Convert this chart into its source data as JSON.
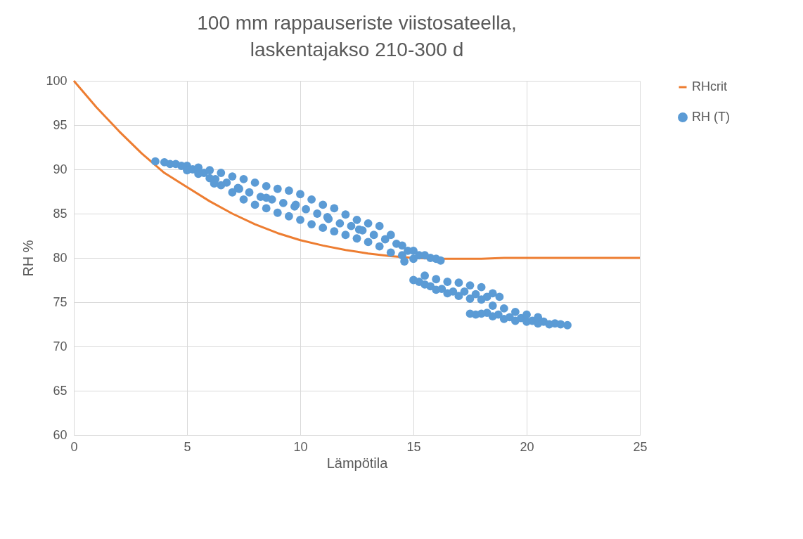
{
  "chart_data": {
    "type": "scatter",
    "title": "100 mm rappauseriste viistosateella,\nlaskentajakso 210-300 d",
    "xlabel": "Lämpötila",
    "ylabel": "RH %",
    "xlim": [
      0,
      25
    ],
    "xticks": [
      0,
      5,
      10,
      15,
      20,
      25
    ],
    "ylim": [
      60,
      100
    ],
    "yticks": [
      60,
      65,
      70,
      75,
      80,
      85,
      90,
      95,
      100
    ],
    "grid": true,
    "legend": "right",
    "series": [
      {
        "name": "RHcrit",
        "type": "line",
        "color": "#ed7d31",
        "x": [
          0,
          1,
          2,
          3,
          4,
          5,
          6,
          7,
          8,
          9,
          10,
          11,
          12,
          13,
          14,
          15,
          16,
          17,
          18,
          19,
          20,
          22,
          25
        ],
        "values": [
          100,
          97.0,
          94.3,
          91.8,
          89.6,
          88.0,
          86.4,
          85.0,
          83.8,
          82.8,
          82.0,
          81.4,
          80.9,
          80.5,
          80.2,
          80.0,
          79.9,
          79.9,
          79.9,
          80.0,
          80.0,
          80.0,
          80.0
        ]
      },
      {
        "name": "RH (T)",
        "color": "#5b9bd5",
        "marker": "circle",
        "x": [
          4.25,
          4.75,
          5.25,
          5.75,
          6.25,
          6.75,
          7.25,
          7.75,
          8.25,
          8.75,
          9.25,
          9.75,
          10.25,
          10.75,
          11.25,
          11.75,
          12.25,
          12.75,
          13.25,
          13.75,
          14.25,
          14.75,
          15.25,
          15.75,
          15.25,
          15.75,
          16.25,
          16.75,
          17.25,
          17.75,
          18.25,
          17.75,
          18.25,
          18.75,
          19.25,
          19.75,
          20.25,
          20.75,
          21.25,
          3.6,
          4.0,
          4.5,
          5.0,
          5.5,
          6.0,
          6.5,
          7.0,
          7.5,
          8.0,
          8.5,
          9.0,
          9.5,
          10.0,
          10.5,
          11.0,
          11.5,
          12.0,
          12.5,
          13.0,
          13.5,
          14.0,
          14.5,
          15.0,
          15.5,
          16.0,
          16.2,
          5.0,
          5.5,
          6.0,
          6.5,
          7.0,
          7.5,
          8.0,
          8.5,
          9.0,
          9.5,
          10.0,
          10.5,
          11.0,
          11.5,
          12.0,
          12.5,
          13.0,
          13.5,
          14.0,
          14.5,
          15.0,
          6.2,
          7.3,
          8.5,
          9.8,
          11.2,
          12.6,
          14.6,
          15.0,
          15.5,
          16.0,
          16.5,
          17.0,
          17.5,
          18.0,
          18.5,
          18.8,
          15.5,
          16.0,
          16.5,
          17.0,
          17.5,
          18.0,
          17.5,
          18.0,
          18.5,
          19.0,
          19.5,
          20.0,
          20.5,
          21.0,
          21.5,
          21.8,
          18.5,
          19.0,
          19.5,
          20.0,
          20.5
        ],
        "values": [
          90.6,
          90.4,
          90.0,
          89.6,
          88.9,
          88.5,
          87.9,
          87.4,
          86.9,
          86.6,
          86.2,
          85.8,
          85.5,
          85.0,
          84.4,
          83.9,
          83.6,
          83.1,
          82.6,
          82.1,
          81.6,
          80.8,
          80.3,
          80.0,
          77.3,
          76.8,
          76.5,
          76.2,
          76.2,
          75.9,
          75.6,
          73.6,
          73.8,
          73.6,
          73.3,
          73.2,
          72.9,
          72.8,
          72.6,
          90.9,
          90.8,
          90.6,
          90.4,
          90.2,
          89.9,
          89.6,
          89.2,
          88.9,
          88.5,
          88.1,
          87.8,
          87.6,
          87.2,
          86.6,
          86.0,
          85.6,
          84.9,
          84.3,
          83.9,
          83.6,
          82.6,
          81.4,
          80.8,
          80.3,
          79.9,
          79.7,
          89.9,
          89.5,
          89.0,
          88.2,
          87.4,
          86.6,
          86.0,
          85.6,
          85.1,
          84.7,
          84.3,
          83.8,
          83.4,
          83.0,
          82.6,
          82.2,
          81.8,
          81.3,
          80.6,
          80.3,
          79.9,
          88.4,
          87.8,
          86.8,
          86.0,
          84.6,
          83.2,
          79.6,
          77.5,
          77.0,
          76.4,
          76.0,
          75.7,
          75.4,
          75.3,
          76.0,
          75.6,
          78.0,
          77.6,
          77.3,
          77.2,
          76.9,
          76.7,
          73.7,
          73.7,
          73.4,
          73.1,
          72.9,
          72.8,
          72.6,
          72.5,
          72.5,
          72.4,
          74.6,
          74.3,
          73.9,
          73.6,
          73.3
        ]
      }
    ]
  }
}
